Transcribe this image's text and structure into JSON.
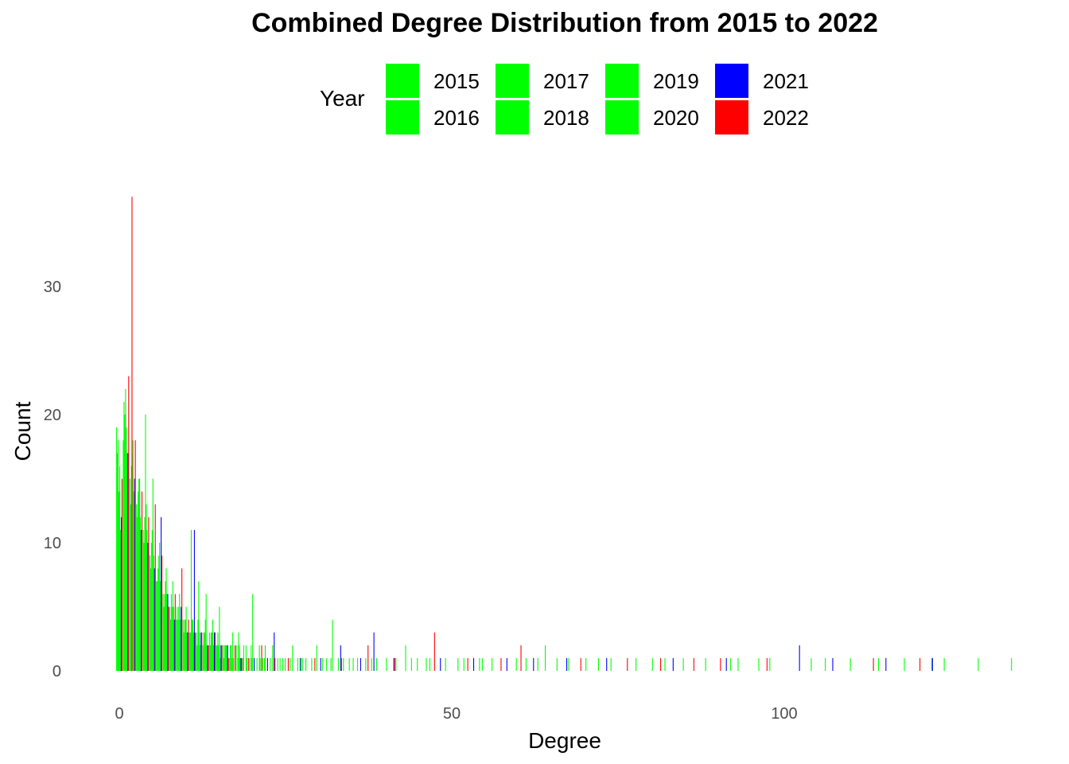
{
  "chart_data": {
    "type": "bar",
    "title": "Combined Degree Distribution from 2015 to 2022",
    "xlabel": "Degree",
    "ylabel": "Count",
    "xlim": [
      -1,
      136
    ],
    "ylim": [
      0,
      37
    ],
    "x_ticks": [
      {
        "value": 0,
        "label": "0"
      },
      {
        "value": 50,
        "label": "50"
      },
      {
        "value": 100,
        "label": "100"
      }
    ],
    "y_ticks": [
      {
        "value": 0,
        "label": "0"
      },
      {
        "value": 10,
        "label": "10"
      },
      {
        "value": 20,
        "label": "20"
      },
      {
        "value": 30,
        "label": "30"
      }
    ],
    "grid": false,
    "legend": {
      "title": "Year",
      "position": "top",
      "entries": [
        {
          "label": "2015",
          "color": "#00ff00"
        },
        {
          "label": "2016",
          "color": "#00ff00"
        },
        {
          "label": "2017",
          "color": "#00ff00"
        },
        {
          "label": "2018",
          "color": "#00ff00"
        },
        {
          "label": "2019",
          "color": "#00ff00"
        },
        {
          "label": "2020",
          "color": "#00ff00"
        },
        {
          "label": "2021",
          "color": "#0000ff"
        },
        {
          "label": "2022",
          "color": "#ff0000"
        }
      ]
    },
    "bar_width": 0.13,
    "series": [
      {
        "name": "2015",
        "color": "#00ff00",
        "points": [
          [
            0,
            19
          ],
          [
            1,
            18
          ],
          [
            2,
            15
          ],
          [
            3,
            13
          ],
          [
            4,
            11
          ],
          [
            5,
            9
          ],
          [
            6,
            7
          ],
          [
            7,
            6
          ],
          [
            8,
            5
          ],
          [
            9,
            4
          ],
          [
            10,
            4
          ],
          [
            11,
            3
          ],
          [
            12,
            3
          ],
          [
            13,
            2
          ],
          [
            14,
            3
          ],
          [
            15,
            2
          ],
          [
            16,
            2
          ],
          [
            17,
            1
          ],
          [
            18,
            2
          ],
          [
            19,
            1
          ],
          [
            20,
            1
          ],
          [
            22,
            1
          ],
          [
            25,
            1
          ],
          [
            28,
            1
          ],
          [
            31,
            1
          ],
          [
            35,
            1
          ],
          [
            42,
            1
          ],
          [
            55,
            1
          ],
          [
            68,
            1
          ]
        ]
      },
      {
        "name": "2016",
        "color": "#00ff00",
        "points": [
          [
            0,
            17
          ],
          [
            1,
            21
          ],
          [
            2,
            13
          ],
          [
            3,
            12
          ],
          [
            4,
            10
          ],
          [
            5,
            8
          ],
          [
            6,
            7
          ],
          [
            7,
            5
          ],
          [
            8,
            4
          ],
          [
            9,
            5
          ],
          [
            10,
            3
          ],
          [
            11,
            3
          ],
          [
            12,
            2
          ],
          [
            13,
            3
          ],
          [
            14,
            2
          ],
          [
            15,
            2
          ],
          [
            16,
            1
          ],
          [
            17,
            2
          ],
          [
            19,
            2
          ],
          [
            21,
            1
          ],
          [
            23,
            1
          ],
          [
            26,
            1
          ],
          [
            30,
            2
          ],
          [
            34,
            1
          ],
          [
            39,
            1
          ],
          [
            47,
            1
          ],
          [
            60,
            1
          ],
          [
            78,
            1
          ]
        ]
      },
      {
        "name": "2017",
        "color": "#00ff00",
        "points": [
          [
            0,
            18
          ],
          [
            1,
            20
          ],
          [
            2,
            16
          ],
          [
            3,
            14
          ],
          [
            4,
            12
          ],
          [
            5,
            10
          ],
          [
            6,
            8
          ],
          [
            7,
            6
          ],
          [
            8,
            6
          ],
          [
            9,
            4
          ],
          [
            10,
            4
          ],
          [
            11,
            11
          ],
          [
            12,
            4
          ],
          [
            13,
            3
          ],
          [
            14,
            3
          ],
          [
            15,
            3
          ],
          [
            16,
            2
          ],
          [
            17,
            2
          ],
          [
            18,
            1
          ],
          [
            20,
            2
          ],
          [
            22,
            1
          ],
          [
            24,
            1
          ],
          [
            27,
            1
          ],
          [
            32,
            1
          ],
          [
            36,
            1
          ],
          [
            45,
            1
          ],
          [
            52,
            1
          ],
          [
            66,
            1
          ],
          [
            85,
            1
          ],
          [
            98,
            1
          ]
        ]
      },
      {
        "name": "2018",
        "color": "#00ff00",
        "points": [
          [
            0,
            14
          ],
          [
            1,
            22
          ],
          [
            2,
            17
          ],
          [
            3,
            15
          ],
          [
            4,
            20
          ],
          [
            5,
            11
          ],
          [
            6,
            9
          ],
          [
            7,
            7
          ],
          [
            8,
            5
          ],
          [
            9,
            5
          ],
          [
            10,
            4
          ],
          [
            11,
            4
          ],
          [
            12,
            7
          ],
          [
            13,
            4
          ],
          [
            14,
            3
          ],
          [
            15,
            2
          ],
          [
            16,
            2
          ],
          [
            17,
            1
          ],
          [
            18,
            3
          ],
          [
            20,
            1
          ],
          [
            22,
            2
          ],
          [
            25,
            1
          ],
          [
            29,
            1
          ],
          [
            33,
            1
          ],
          [
            38,
            1
          ],
          [
            44,
            1
          ],
          [
            51,
            1
          ],
          [
            63,
            1
          ],
          [
            74,
            1
          ],
          [
            92,
            1
          ],
          [
            110,
            1
          ]
        ]
      },
      {
        "name": "2019",
        "color": "#00ff00",
        "points": [
          [
            0,
            16
          ],
          [
            1,
            19
          ],
          [
            2,
            18
          ],
          [
            3,
            15
          ],
          [
            4,
            13
          ],
          [
            5,
            15
          ],
          [
            6,
            10
          ],
          [
            7,
            8
          ],
          [
            8,
            7
          ],
          [
            9,
            6
          ],
          [
            10,
            5
          ],
          [
            11,
            4
          ],
          [
            12,
            3
          ],
          [
            13,
            6
          ],
          [
            14,
            4
          ],
          [
            15,
            5
          ],
          [
            16,
            2
          ],
          [
            17,
            3
          ],
          [
            18,
            2
          ],
          [
            19,
            2
          ],
          [
            20,
            6
          ],
          [
            21,
            2
          ],
          [
            23,
            2
          ],
          [
            26,
            2
          ],
          [
            28,
            1
          ],
          [
            32,
            4
          ],
          [
            37,
            1
          ],
          [
            43,
            2
          ],
          [
            49,
            1
          ],
          [
            56,
            1
          ],
          [
            64,
            2
          ],
          [
            72,
            1
          ],
          [
            82,
            1
          ],
          [
            93,
            1
          ],
          [
            104,
            1
          ],
          [
            118,
            1
          ],
          [
            124,
            1
          ]
        ]
      },
      {
        "name": "2020",
        "color": "#00ff00",
        "points": [
          [
            0,
            11
          ],
          [
            1,
            17
          ],
          [
            2,
            14
          ],
          [
            3,
            12
          ],
          [
            4,
            11
          ],
          [
            5,
            9
          ],
          [
            6,
            7
          ],
          [
            7,
            6
          ],
          [
            8,
            5
          ],
          [
            9,
            4
          ],
          [
            10,
            3
          ],
          [
            11,
            3
          ],
          [
            12,
            2
          ],
          [
            13,
            2
          ],
          [
            14,
            2
          ],
          [
            15,
            1
          ],
          [
            16,
            2
          ],
          [
            17,
            1
          ],
          [
            18,
            1
          ],
          [
            19,
            1
          ],
          [
            21,
            1
          ],
          [
            24,
            1
          ],
          [
            27,
            1
          ],
          [
            31,
            1
          ],
          [
            35,
            1
          ],
          [
            40,
            1
          ],
          [
            46,
            1
          ],
          [
            54,
            1
          ],
          [
            61,
            1
          ],
          [
            70,
            1
          ],
          [
            80,
            1
          ],
          [
            88,
            1
          ],
          [
            96,
            1
          ],
          [
            106,
            1
          ],
          [
            114,
            1
          ],
          [
            122,
            1
          ],
          [
            129,
            1
          ],
          [
            134,
            1
          ]
        ]
      },
      {
        "name": "2021",
        "color": "#0000ff",
        "points": [
          [
            0,
            12
          ],
          [
            1,
            17
          ],
          [
            2,
            15
          ],
          [
            3,
            11
          ],
          [
            4,
            10
          ],
          [
            5,
            8
          ],
          [
            6,
            12
          ],
          [
            7,
            6
          ],
          [
            8,
            4
          ],
          [
            9,
            5
          ],
          [
            10,
            3
          ],
          [
            11,
            11
          ],
          [
            12,
            3
          ],
          [
            13,
            2
          ],
          [
            14,
            3
          ],
          [
            15,
            2
          ],
          [
            16,
            2
          ],
          [
            18,
            1
          ],
          [
            20,
            1
          ],
          [
            22,
            1
          ],
          [
            23,
            3
          ],
          [
            27,
            1
          ],
          [
            30,
            1
          ],
          [
            33,
            2
          ],
          [
            36,
            1
          ],
          [
            38,
            3
          ],
          [
            41,
            1
          ],
          [
            48,
            1
          ],
          [
            53,
            1
          ],
          [
            58,
            1
          ],
          [
            62,
            1
          ],
          [
            67,
            1
          ],
          [
            73,
            1
          ],
          [
            83,
            1
          ],
          [
            91,
            1
          ],
          [
            102,
            2
          ],
          [
            107,
            1
          ],
          [
            115,
            1
          ],
          [
            122,
            1
          ]
        ]
      },
      {
        "name": "2022",
        "color": "#ff0000",
        "points": [
          [
            0,
            15
          ],
          [
            1,
            23
          ],
          [
            1.5,
            37
          ],
          [
            2,
            18
          ],
          [
            3,
            14
          ],
          [
            4,
            12
          ],
          [
            5,
            13
          ],
          [
            6,
            9
          ],
          [
            7,
            5
          ],
          [
            8,
            6
          ],
          [
            9,
            8
          ],
          [
            10,
            4
          ],
          [
            11,
            3
          ],
          [
            12,
            3
          ],
          [
            13,
            2
          ],
          [
            14,
            3
          ],
          [
            15,
            2
          ],
          [
            16,
            1
          ],
          [
            17,
            2
          ],
          [
            18,
            1
          ],
          [
            19,
            1
          ],
          [
            21,
            2
          ],
          [
            23,
            1
          ],
          [
            25,
            1
          ],
          [
            29,
            1
          ],
          [
            33,
            1
          ],
          [
            37,
            2
          ],
          [
            41,
            1
          ],
          [
            47,
            3
          ],
          [
            52,
            1
          ],
          [
            57,
            1
          ],
          [
            60,
            2
          ],
          [
            69,
            1
          ],
          [
            76,
            1
          ],
          [
            81,
            1
          ],
          [
            86,
            1
          ],
          [
            90,
            1
          ],
          [
            97,
            1
          ],
          [
            113,
            1
          ],
          [
            120,
            1
          ]
        ]
      }
    ]
  }
}
